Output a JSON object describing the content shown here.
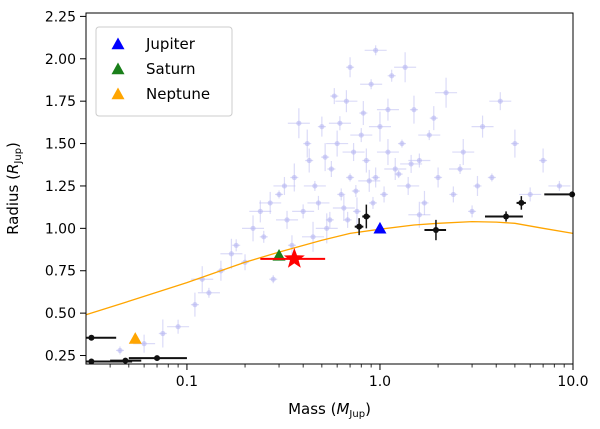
{
  "chart_data": {
    "type": "scatter",
    "xlabel": "Mass",
    "xlabel_unit_base": "M",
    "xlabel_unit_sub": "Jup",
    "ylabel": "Radius",
    "ylabel_unit_base": "R",
    "ylabel_unit_sub": "Jup",
    "x_scale": "log",
    "xlim": [
      0.03,
      10.0
    ],
    "ylim": [
      0.2,
      2.27
    ],
    "x_ticks": [
      0.1,
      1.0,
      10.0
    ],
    "x_tick_labels": [
      "0.1",
      "1.0",
      "10.0"
    ],
    "y_ticks": [
      0.25,
      0.5,
      0.75,
      1.0,
      1.25,
      1.5,
      1.75,
      2.0,
      2.25
    ],
    "y_tick_labels": [
      "0.25",
      "0.50",
      "0.75",
      "1.00",
      "1.25",
      "1.50",
      "1.75",
      "2.00",
      "2.25"
    ],
    "grid": false,
    "legend_position": "top-left",
    "legend": [
      {
        "label": "Jupiter",
        "color": "#0000ff",
        "marker": "triangle"
      },
      {
        "label": "Saturn",
        "color": "#1a7f1a",
        "marker": "triangle"
      },
      {
        "label": "Neptune",
        "color": "#ffa500",
        "marker": "triangle"
      }
    ],
    "solar_system_planets": [
      {
        "name": "Jupiter",
        "x": 1.0,
        "y": 1.0,
        "color": "#0000ff"
      },
      {
        "name": "Saturn",
        "x": 0.3,
        "y": 0.84,
        "color": "#1a7f1a"
      },
      {
        "name": "Neptune",
        "x": 0.054,
        "y": 0.35,
        "color": "#ffa500"
      }
    ],
    "highlighted_planet": {
      "x": 0.36,
      "y": 0.82,
      "xerr_low": 0.12,
      "xerr_high": 0.16,
      "color": "#ff0000",
      "marker": "star"
    },
    "model_curve": {
      "color": "#ffa500",
      "x": [
        0.03,
        0.05,
        0.1,
        0.2,
        0.3,
        0.5,
        0.7,
        1.0,
        1.5,
        2.0,
        3.0,
        4.0,
        5.0,
        7.0,
        10.0
      ],
      "y": [
        0.49,
        0.57,
        0.68,
        0.8,
        0.86,
        0.93,
        0.97,
        0.995,
        1.02,
        1.03,
        1.04,
        1.037,
        1.03,
        1.0,
        0.97
      ]
    },
    "black_points": [
      {
        "x": 0.032,
        "y": 0.355,
        "xerr_low": 0.002,
        "xerr_high": 0.011,
        "yerr": 0.0
      },
      {
        "x": 0.032,
        "y": 0.215,
        "xerr_low": 0.002,
        "xerr_high": 0.02,
        "yerr": 0.0
      },
      {
        "x": 0.048,
        "y": 0.22,
        "xerr_low": 0.008,
        "xerr_high": 0.01,
        "yerr": 0.01
      },
      {
        "x": 0.07,
        "y": 0.235,
        "xerr_low": 0.02,
        "xerr_high": 0.03,
        "yerr": 0.01
      },
      {
        "x": 0.78,
        "y": 1.01,
        "xerr_low": 0.04,
        "xerr_high": 0.04,
        "yerr": 0.05
      },
      {
        "x": 0.85,
        "y": 1.07,
        "xerr_low": 0.04,
        "xerr_high": 0.04,
        "yerr": 0.07
      },
      {
        "x": 1.95,
        "y": 0.99,
        "xerr_low": 0.25,
        "xerr_high": 0.25,
        "yerr": 0.06
      },
      {
        "x": 4.5,
        "y": 1.07,
        "xerr_low": 1.0,
        "xerr_high": 1.0,
        "yerr": 0.03
      },
      {
        "x": 5.4,
        "y": 1.15,
        "xerr_low": 0.3,
        "xerr_high": 0.3,
        "yerr": 0.04
      },
      {
        "x": 9.9,
        "y": 1.2,
        "xerr_low": 2.8,
        "xerr_high": 0.1,
        "yerr": 0.0
      }
    ],
    "background_points": [
      {
        "x": 0.045,
        "y": 0.28
      },
      {
        "x": 0.06,
        "y": 0.32
      },
      {
        "x": 0.075,
        "y": 0.38
      },
      {
        "x": 0.09,
        "y": 0.42
      },
      {
        "x": 0.11,
        "y": 0.55
      },
      {
        "x": 0.13,
        "y": 0.62
      },
      {
        "x": 0.15,
        "y": 0.75
      },
      {
        "x": 0.17,
        "y": 0.85
      },
      {
        "x": 0.2,
        "y": 0.8
      },
      {
        "x": 0.22,
        "y": 1.0
      },
      {
        "x": 0.25,
        "y": 0.95
      },
      {
        "x": 0.27,
        "y": 1.15
      },
      {
        "x": 0.3,
        "y": 1.2
      },
      {
        "x": 0.33,
        "y": 1.05
      },
      {
        "x": 0.36,
        "y": 1.3
      },
      {
        "x": 0.4,
        "y": 1.1
      },
      {
        "x": 0.43,
        "y": 1.4
      },
      {
        "x": 0.46,
        "y": 1.25
      },
      {
        "x": 0.5,
        "y": 1.6
      },
      {
        "x": 0.53,
        "y": 1.0
      },
      {
        "x": 0.56,
        "y": 1.35
      },
      {
        "x": 0.6,
        "y": 1.5
      },
      {
        "x": 0.63,
        "y": 1.2
      },
      {
        "x": 0.67,
        "y": 1.75
      },
      {
        "x": 0.7,
        "y": 1.3
      },
      {
        "x": 0.73,
        "y": 1.45
      },
      {
        "x": 0.76,
        "y": 1.1
      },
      {
        "x": 0.8,
        "y": 1.55
      },
      {
        "x": 0.85,
        "y": 1.4
      },
      {
        "x": 0.9,
        "y": 1.85
      },
      {
        "x": 0.95,
        "y": 1.3
      },
      {
        "x": 1.0,
        "y": 1.6
      },
      {
        "x": 1.05,
        "y": 1.2
      },
      {
        "x": 1.1,
        "y": 1.45
      },
      {
        "x": 1.15,
        "y": 1.9
      },
      {
        "x": 1.2,
        "y": 1.35
      },
      {
        "x": 1.3,
        "y": 1.5
      },
      {
        "x": 1.4,
        "y": 1.25
      },
      {
        "x": 1.5,
        "y": 1.7
      },
      {
        "x": 1.6,
        "y": 1.4
      },
      {
        "x": 1.7,
        "y": 1.15
      },
      {
        "x": 1.8,
        "y": 1.55
      },
      {
        "x": 2.0,
        "y": 1.3
      },
      {
        "x": 2.2,
        "y": 1.8
      },
      {
        "x": 2.4,
        "y": 1.2
      },
      {
        "x": 2.7,
        "y": 1.45
      },
      {
        "x": 3.0,
        "y": 1.1
      },
      {
        "x": 3.4,
        "y": 1.6
      },
      {
        "x": 3.8,
        "y": 1.3
      },
      {
        "x": 4.2,
        "y": 1.75
      },
      {
        "x": 5.0,
        "y": 1.5
      },
      {
        "x": 6.0,
        "y": 1.2
      },
      {
        "x": 7.0,
        "y": 1.4
      },
      {
        "x": 8.5,
        "y": 1.25
      },
      {
        "x": 0.35,
        "y": 0.9
      },
      {
        "x": 0.45,
        "y": 0.95
      },
      {
        "x": 0.55,
        "y": 1.05
      },
      {
        "x": 0.65,
        "y": 1.12
      },
      {
        "x": 0.75,
        "y": 1.22
      },
      {
        "x": 0.88,
        "y": 1.28
      },
      {
        "x": 1.25,
        "y": 1.32
      },
      {
        "x": 1.45,
        "y": 1.38
      },
      {
        "x": 0.52,
        "y": 1.42
      },
      {
        "x": 0.62,
        "y": 1.62
      },
      {
        "x": 0.82,
        "y": 1.68
      },
      {
        "x": 0.95,
        "y": 2.05
      },
      {
        "x": 0.7,
        "y": 1.95
      },
      {
        "x": 1.35,
        "y": 1.95
      },
      {
        "x": 0.58,
        "y": 1.78
      },
      {
        "x": 0.12,
        "y": 0.7
      },
      {
        "x": 0.18,
        "y": 0.9
      },
      {
        "x": 0.24,
        "y": 1.1
      },
      {
        "x": 0.28,
        "y": 0.7
      },
      {
        "x": 0.32,
        "y": 1.25
      },
      {
        "x": 0.42,
        "y": 1.5
      },
      {
        "x": 0.48,
        "y": 1.15
      },
      {
        "x": 1.9,
        "y": 1.65
      },
      {
        "x": 2.6,
        "y": 1.35
      },
      {
        "x": 3.2,
        "y": 1.25
      },
      {
        "x": 0.38,
        "y": 1.62
      },
      {
        "x": 0.68,
        "y": 1.05
      },
      {
        "x": 1.6,
        "y": 1.08
      },
      {
        "x": 0.92,
        "y": 1.15
      },
      {
        "x": 1.1,
        "y": 1.7
      }
    ]
  }
}
